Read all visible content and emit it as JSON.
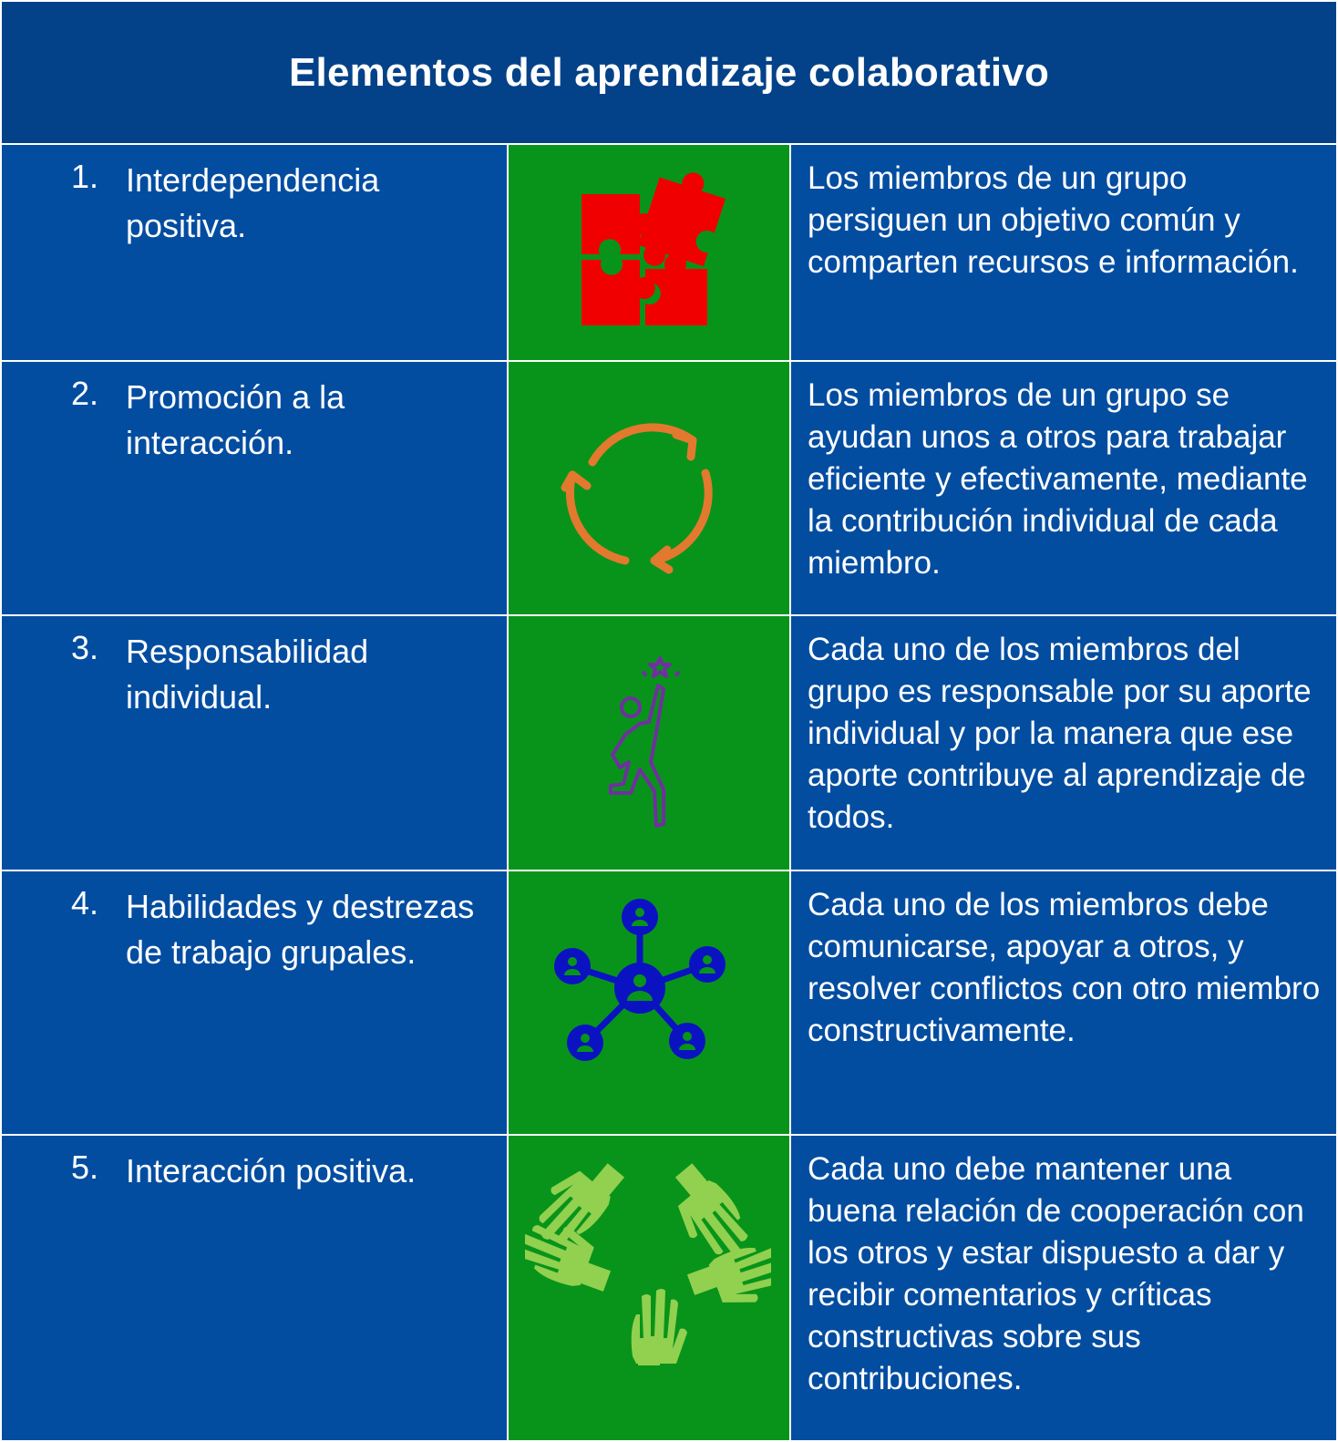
{
  "title": "Elementos del aprendizaje colaborativo",
  "colors": {
    "header_bg": "#034289",
    "row_bg": "#034da1",
    "icon_cell_bg": "#08941a",
    "puzzle": "#f00000",
    "cycle": "#e2792f",
    "person": "#7030a0",
    "network": "#0a12c2",
    "hands": "#92d050"
  },
  "rows": [
    {
      "number": "1.",
      "title": "Interdependencia positiva.",
      "icon": "puzzle-icon",
      "description": "Los miembros de un grupo persiguen un objetivo común y comparten recursos e información."
    },
    {
      "number": "2.",
      "title": "Promoción a la interacción.",
      "icon": "cycle-arrows-icon",
      "description": "Los miembros de un grupo se ayudan unos a otros para trabajar eficiente y efectivamente, mediante la contribución individual de cada miembro."
    },
    {
      "number": "3.",
      "title": "Responsabilidad individual.",
      "icon": "person-reaching-star-icon",
      "description": "Cada uno de los miembros del grupo es responsable por su aporte individual y por la manera que ese aporte contribuye al aprendizaje de todos."
    },
    {
      "number": "4.",
      "title": "Habilidades y destrezas de trabajo grupales.",
      "icon": "people-network-icon",
      "description": "Cada uno de los miembros debe comunicarse, apoyar a otros, y resolver conflictos con otro miembro constructivamente."
    },
    {
      "number": "5.",
      "title": "Interacción positiva.",
      "icon": "joined-hands-icon",
      "description": "Cada uno debe mantener una buena relación de cooperación con los otros y estar dispuesto a dar y recibir comentarios y críticas constructivas sobre sus contribuciones."
    }
  ]
}
